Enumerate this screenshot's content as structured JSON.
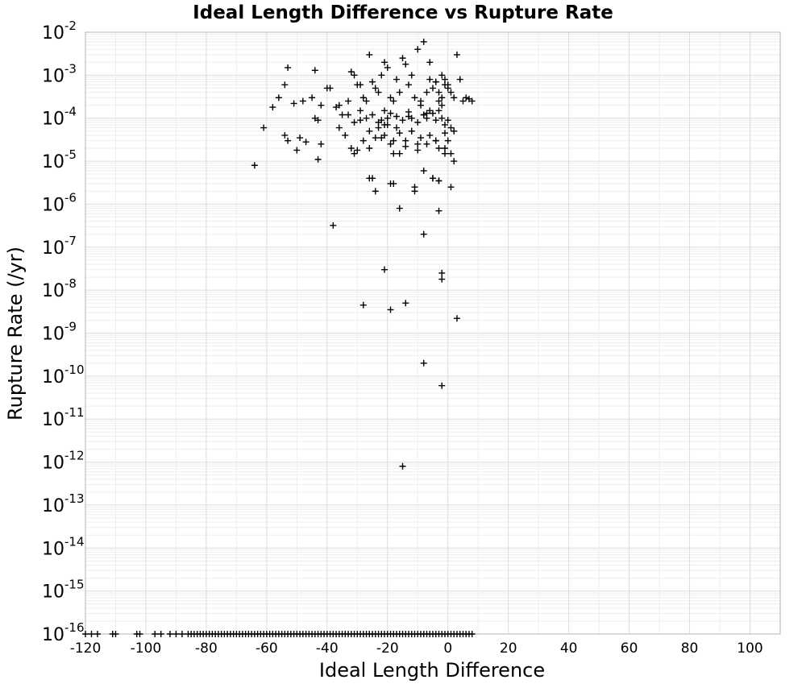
{
  "chart_data": {
    "type": "scatter",
    "title": "Ideal Length Difference vs Rupture Rate",
    "xlabel": "Ideal Length Difference",
    "ylabel": "Rupture Rate (/yr)",
    "xlim": [
      -120,
      110
    ],
    "ylim": [
      1e-16,
      0.01
    ],
    "y_scale": "log",
    "grid": true,
    "x_ticks": [
      -120,
      -100,
      -80,
      -60,
      -40,
      -20,
      0,
      20,
      40,
      60,
      80,
      100
    ],
    "x_tick_labels": [
      "-120",
      "-100",
      "-80",
      "-60",
      "-40",
      "-20",
      "0",
      "20",
      "40",
      "60",
      "80",
      "100"
    ],
    "y_tick_exponents": [
      -16,
      -15,
      -14,
      -13,
      -12,
      -11,
      -10,
      -9,
      -8,
      -7,
      -6,
      -5,
      -4,
      -3,
      -2
    ],
    "y_tick_base": "10",
    "y_tick_exp_labels": [
      "-16",
      "-15",
      "-14",
      "-13",
      "-12",
      "-11",
      "-10",
      "-9",
      "-8",
      "-7",
      "-6",
      "-5",
      "-4",
      "-3",
      "-2"
    ],
    "marker": "plus",
    "marker_color": "#000000",
    "series": [
      {
        "x": [
          -53,
          -56,
          -54,
          -44,
          -48,
          -42,
          -40,
          -39,
          -37,
          -32,
          -31,
          -29,
          -26,
          -25,
          -22,
          -21,
          -24,
          -20,
          -17,
          -15,
          -14,
          -12,
          -10,
          -8,
          -6,
          -4,
          -2,
          -1,
          0,
          2,
          3,
          4,
          -58,
          -51,
          -45,
          -36,
          -33,
          -30,
          -28,
          -27,
          -23,
          -19,
          -18,
          -16,
          -13,
          -11,
          -9,
          -7,
          -5,
          -3,
          -2,
          1,
          5,
          6,
          7,
          8,
          -61,
          -54,
          -49,
          -44,
          -43,
          -35,
          -31,
          -29,
          -27,
          -25,
          -22,
          -21,
          -20,
          -19,
          -17,
          -15,
          -13,
          -12,
          -10,
          -8,
          -7,
          -5,
          -4,
          -3,
          -2,
          -1,
          0,
          1,
          2,
          -53,
          -50,
          -47,
          -42,
          -34,
          -32,
          -28,
          -26,
          -24,
          -23,
          -21,
          -19,
          -18,
          -16,
          -14,
          -12,
          -10,
          -9,
          -6,
          -4,
          -3,
          -1,
          0,
          2,
          -64,
          -43,
          -31,
          -26,
          -19,
          -16,
          -11,
          -8,
          -5,
          -3,
          1,
          -24,
          -25,
          -18,
          -11,
          -5,
          -3,
          -1,
          2,
          -16,
          -3,
          -38,
          -8,
          -21,
          -2,
          -2,
          -28,
          -19,
          -14,
          3,
          -8,
          -2,
          -15,
          -33,
          -23,
          -9,
          -6,
          -2,
          -17,
          -12,
          -20,
          -8,
          -3,
          -1,
          0,
          -4,
          -6,
          -30,
          -26,
          -22,
          -18,
          -14,
          -10,
          -7,
          -4,
          -1,
          1,
          -36,
          -29,
          -21,
          -13,
          -7
        ],
        "y": [
          0.0015,
          0.0003,
          0.0006,
          0.0013,
          0.00025,
          0.0002,
          0.0005,
          0.0005,
          0.00018,
          0.0012,
          0.001,
          0.0006,
          0.003,
          0.0007,
          0.001,
          0.002,
          0.0005,
          0.0015,
          0.0008,
          0.0025,
          0.0018,
          0.001,
          0.004,
          0.006,
          0.002,
          0.0007,
          0.001,
          0.0008,
          0.0006,
          0.0003,
          0.003,
          0.0008,
          0.00018,
          0.00022,
          0.0003,
          0.0002,
          0.00025,
          0.0006,
          0.0003,
          0.00025,
          0.0004,
          0.0003,
          0.00025,
          0.0004,
          0.0006,
          0.0003,
          0.00025,
          0.0004,
          0.0005,
          0.0004,
          0.0003,
          0.0004,
          0.00025,
          0.0003,
          0.00028,
          0.00025,
          6e-05,
          4e-05,
          3.5e-05,
          0.0001,
          9e-05,
          0.00012,
          8e-05,
          0.00015,
          0.0001,
          0.00012,
          9e-05,
          0.00015,
          0.0001,
          0.00013,
          0.00011,
          9e-05,
          0.00014,
          0.0001,
          8e-05,
          0.00012,
          0.0001,
          0.00013,
          9e-05,
          0.00015,
          0.0001,
          7e-05,
          9e-05,
          6e-05,
          5e-05,
          3e-05,
          1.8e-05,
          2.8e-05,
          2.5e-05,
          4e-05,
          2e-05,
          3e-05,
          5e-05,
          3.5e-05,
          6e-05,
          4e-05,
          2.5e-05,
          3e-05,
          4.5e-05,
          3e-05,
          5e-05,
          2.5e-05,
          3.5e-05,
          4e-05,
          3e-05,
          2e-05,
          4.5e-05,
          3e-05,
          5e-05,
          8e-06,
          1.1e-05,
          1.5e-05,
          4e-06,
          3e-06,
          1.5e-05,
          2.5e-06,
          6e-06,
          4e-06,
          3.5e-06,
          2.5e-06,
          2e-06,
          4e-06,
          3e-06,
          2e-06,
          4e-06,
          3.5e-06,
          1.5e-05,
          1e-05,
          8e-07,
          7e-07,
          3.2e-07,
          2e-07,
          3e-08,
          2.5e-08,
          1.8e-08,
          4.5e-09,
          3.5e-09,
          5e-09,
          2.2e-09,
          2e-10,
          6e-11,
          8e-13,
          0.00012,
          8e-05,
          0.0002,
          0.00015,
          0.0002,
          6e-05,
          5e-05,
          7e-05,
          0.00012,
          0.00025,
          0.0006,
          0.0005,
          0.0007,
          0.0008,
          1.8e-05,
          2e-05,
          3.5e-05,
          1.5e-05,
          2.2e-05,
          1.8e-05,
          2.5e-05,
          3e-05,
          2e-05,
          1.5e-05,
          6e-05,
          9e-05,
          7e-05,
          0.00011,
          0.00013
        ]
      },
      {
        "x": [
          -120,
          -118,
          -116,
          -111,
          -110,
          -103,
          -102,
          -97,
          -95,
          -92,
          -90,
          -88,
          -86,
          -85,
          -84,
          -83,
          -82,
          -81,
          -80,
          -79,
          -78,
          -77,
          -76,
          -75,
          -74,
          -73,
          -72,
          -71,
          -70,
          -69,
          -68,
          -67,
          -66,
          -65,
          -64,
          -63,
          -62,
          -61,
          -60,
          -59,
          -58,
          -57,
          -56,
          -55,
          -54,
          -53,
          -52,
          -51,
          -50,
          -49,
          -48,
          -47,
          -46,
          -45,
          -44,
          -43,
          -42,
          -41,
          -40,
          -39,
          -38,
          -37,
          -36,
          -35,
          -34,
          -33,
          -32,
          -31,
          -30,
          -29,
          -28,
          -27,
          -26,
          -25,
          -24,
          -23,
          -22,
          -21,
          -20,
          -19,
          -18,
          -17,
          -16,
          -15,
          -14,
          -13,
          -12,
          -11,
          -10,
          -9,
          -8,
          -7,
          -6,
          -5,
          -4,
          -3,
          -2,
          -1,
          0,
          1,
          2,
          3,
          4,
          5,
          6,
          7,
          8
        ],
        "y": [
          1e-16,
          1e-16,
          1e-16,
          1e-16,
          1e-16,
          1e-16,
          1e-16,
          1e-16,
          1e-16,
          1e-16,
          1e-16,
          1e-16,
          1e-16,
          1e-16,
          1e-16,
          1e-16,
          1e-16,
          1e-16,
          1e-16,
          1e-16,
          1e-16,
          1e-16,
          1e-16,
          1e-16,
          1e-16,
          1e-16,
          1e-16,
          1e-16,
          1e-16,
          1e-16,
          1e-16,
          1e-16,
          1e-16,
          1e-16,
          1e-16,
          1e-16,
          1e-16,
          1e-16,
          1e-16,
          1e-16,
          1e-16,
          1e-16,
          1e-16,
          1e-16,
          1e-16,
          1e-16,
          1e-16,
          1e-16,
          1e-16,
          1e-16,
          1e-16,
          1e-16,
          1e-16,
          1e-16,
          1e-16,
          1e-16,
          1e-16,
          1e-16,
          1e-16,
          1e-16,
          1e-16,
          1e-16,
          1e-16,
          1e-16,
          1e-16,
          1e-16,
          1e-16,
          1e-16,
          1e-16,
          1e-16,
          1e-16,
          1e-16,
          1e-16,
          1e-16,
          1e-16,
          1e-16,
          1e-16,
          1e-16,
          1e-16,
          1e-16,
          1e-16,
          1e-16,
          1e-16,
          1e-16,
          1e-16,
          1e-16,
          1e-16,
          1e-16,
          1e-16,
          1e-16,
          1e-16,
          1e-16,
          1e-16,
          1e-16,
          1e-16,
          1e-16,
          1e-16,
          1e-16,
          1e-16,
          1e-16,
          1e-16,
          1e-16,
          1e-16,
          1e-16,
          1e-16,
          1e-16,
          1e-16
        ]
      }
    ]
  }
}
